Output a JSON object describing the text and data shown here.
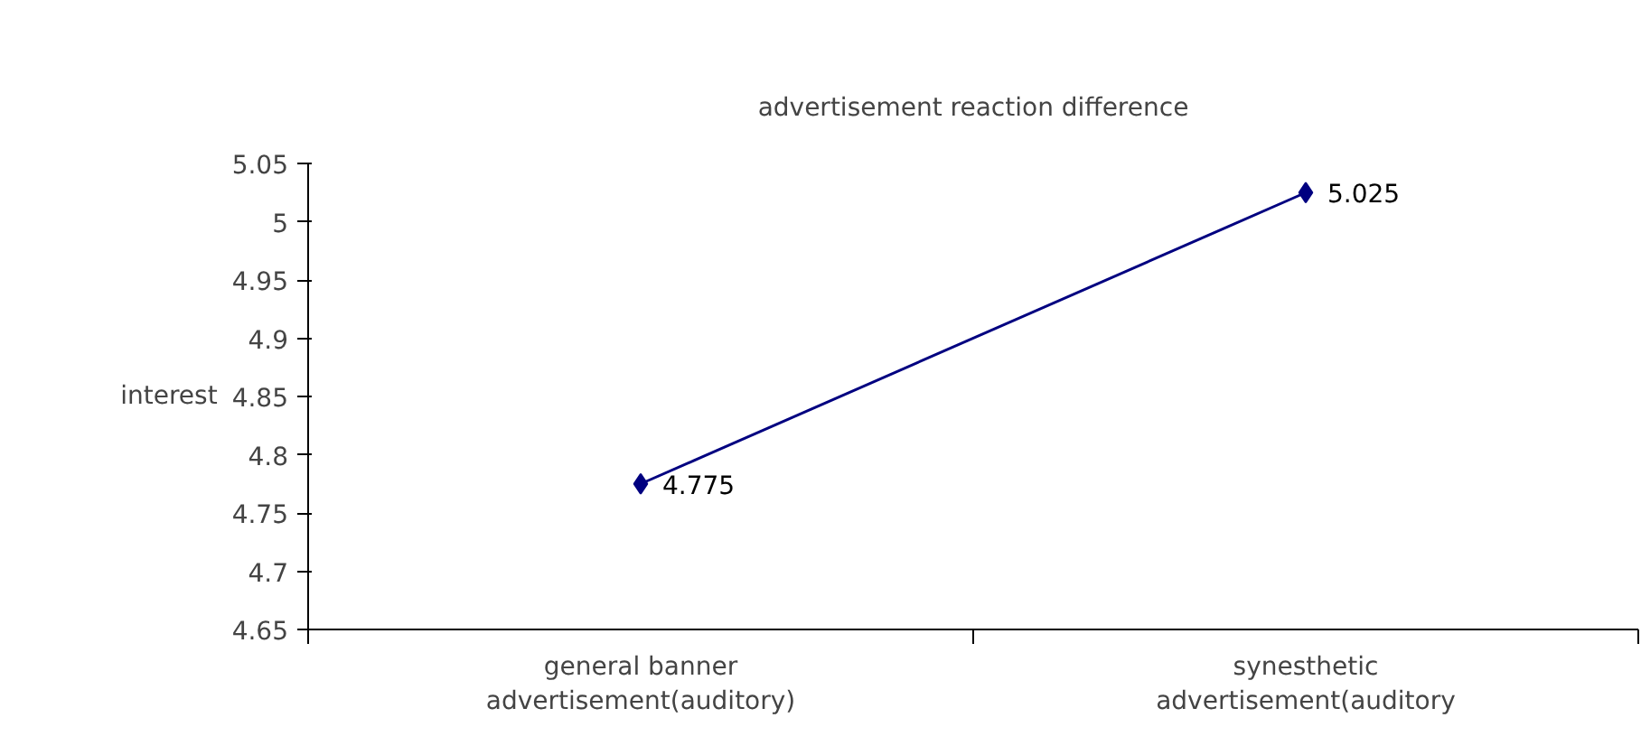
{
  "chart_data": {
    "type": "line",
    "title": "advertisement reaction difference",
    "ylabel": "interest",
    "categories": [
      "general banner advertisement(auditory)",
      "synesthetic advertisement(auditory"
    ],
    "series": [
      {
        "color": "#000080",
        "values": [
          4.775,
          5.025
        ]
      }
    ],
    "ylim": [
      4.65,
      5.05
    ],
    "yticks": [
      4.65,
      4.7,
      4.75,
      4.8,
      4.85,
      4.9,
      4.95,
      5,
      5.05
    ],
    "marker": "diamond",
    "line_style": "solid",
    "data_labels": true,
    "grid": false
  }
}
